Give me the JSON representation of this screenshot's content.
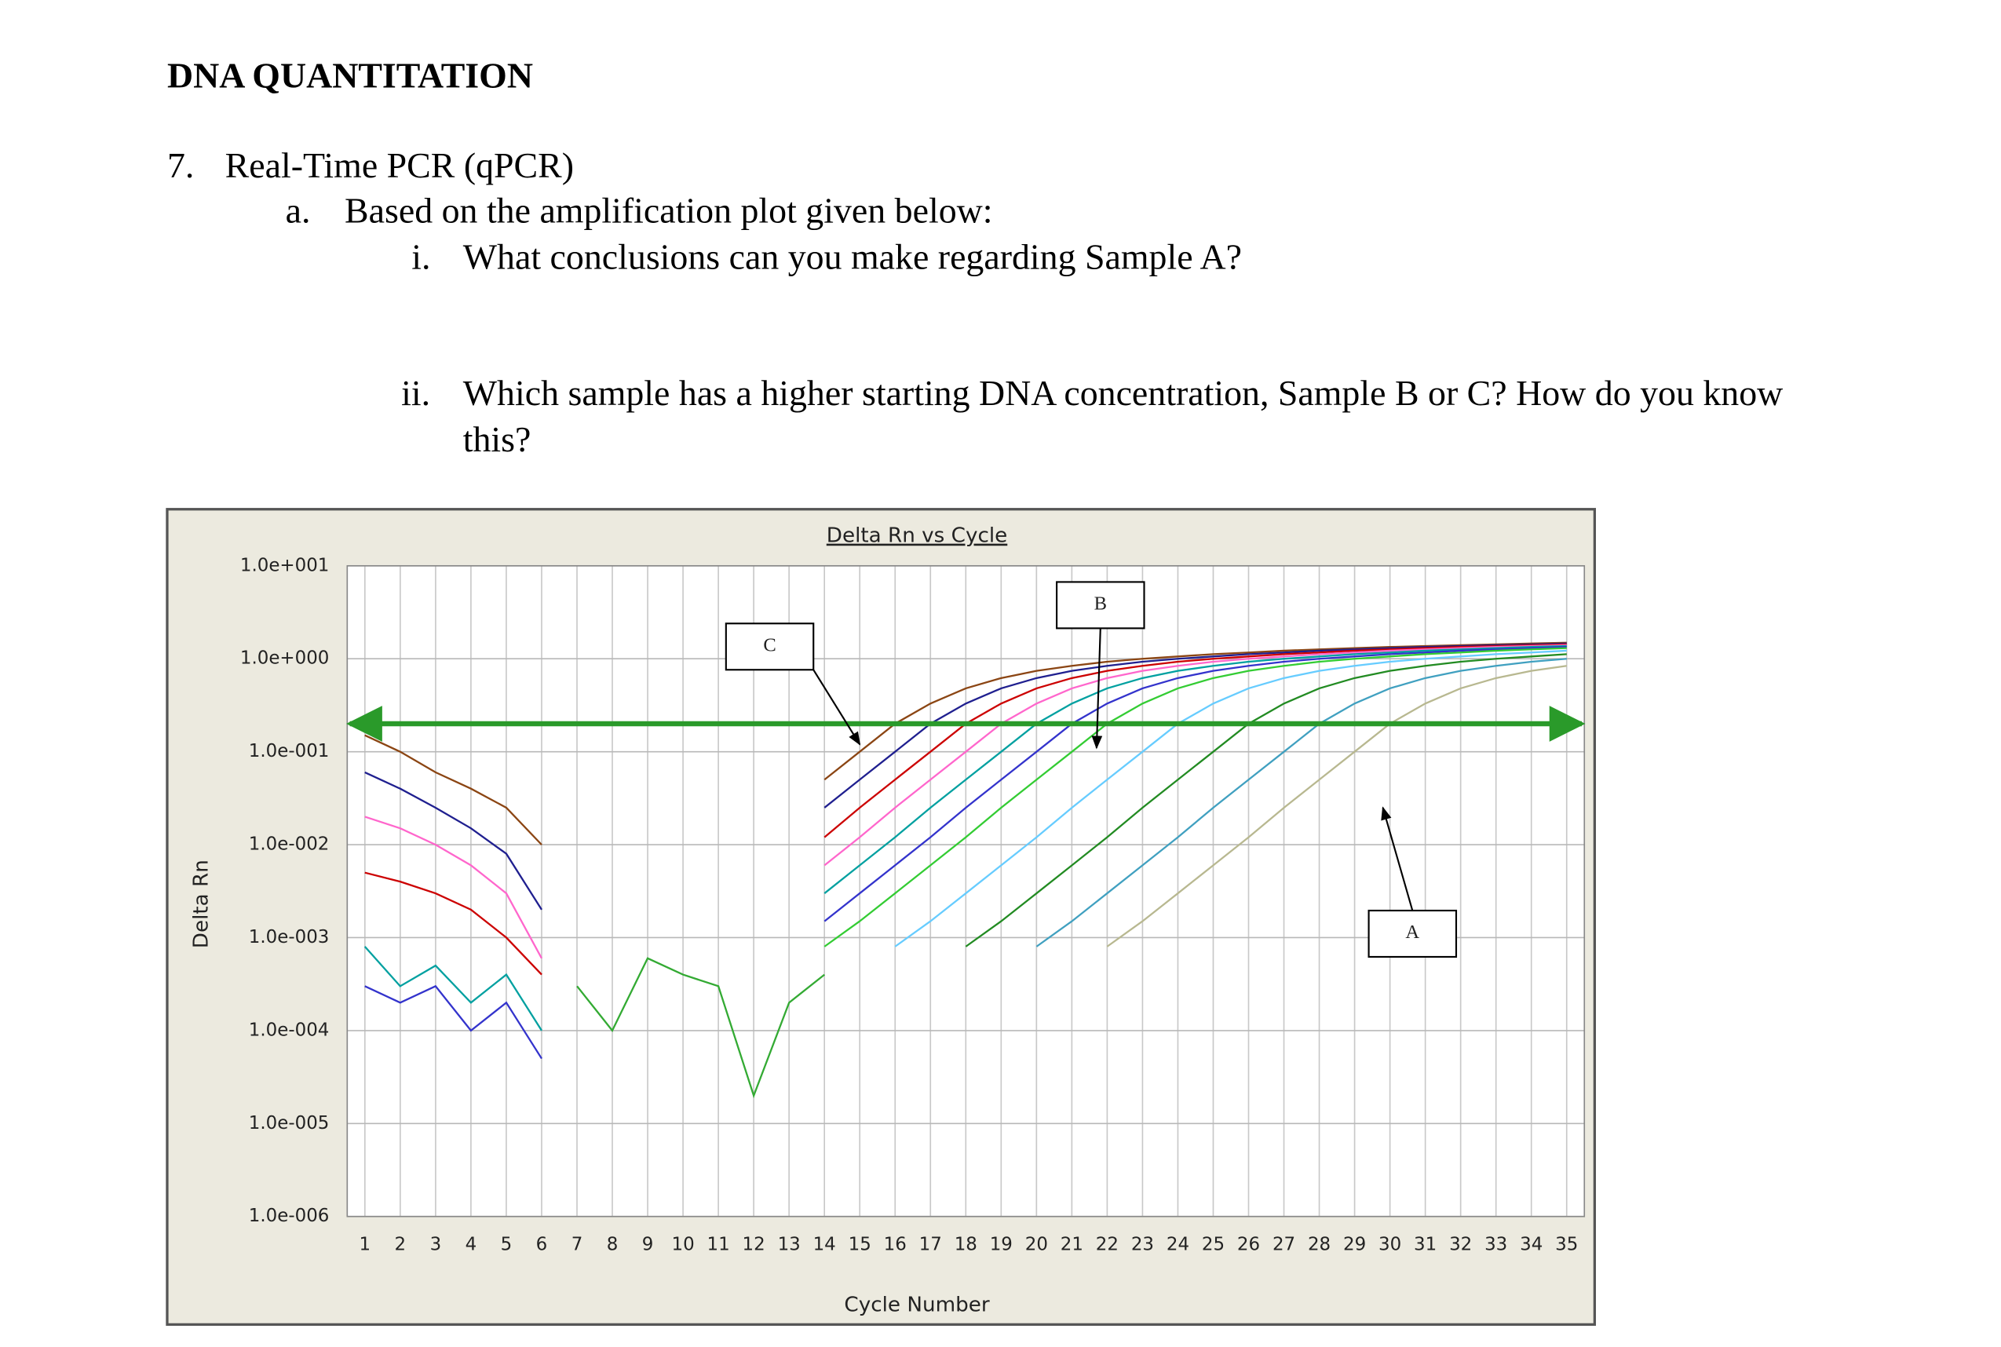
{
  "document": {
    "title": "DNA QUANTITATION",
    "question": {
      "number": "7.",
      "title": "Real-Time PCR (qPCR)",
      "part": {
        "label": "a.",
        "text": "Based on the amplification plot given below:",
        "items": [
          {
            "label": "i.",
            "text": "What conclusions can you make regarding Sample A?"
          },
          {
            "label": "ii.",
            "text": "Which sample has a higher starting DNA concentration, Sample B or C? How do you know this?"
          }
        ]
      }
    }
  },
  "chart_data": {
    "type": "line",
    "title": "Delta Rn vs Cycle",
    "x_label": "Cycle Number",
    "y_label": "Delta Rn",
    "log_y": true,
    "grid": true,
    "x": [
      1,
      2,
      3,
      4,
      5,
      6,
      7,
      8,
      9,
      10,
      11,
      12,
      13,
      14,
      15,
      16,
      17,
      18,
      19,
      20,
      21,
      22,
      23,
      24,
      25,
      26,
      27,
      28,
      29,
      30,
      31,
      32,
      33,
      34,
      35
    ],
    "xlim": [
      0.5,
      35.5
    ],
    "xticks": [
      1,
      2,
      3,
      4,
      5,
      6,
      7,
      8,
      9,
      10,
      11,
      12,
      13,
      14,
      15,
      16,
      17,
      18,
      19,
      20,
      21,
      22,
      23,
      24,
      25,
      26,
      27,
      28,
      29,
      30,
      31,
      32,
      33,
      34,
      35
    ],
    "ylim": [
      1e-06,
      10
    ],
    "yticks": [
      {
        "value": 10,
        "label": "1.0e+001"
      },
      {
        "value": 1,
        "label": "1.0e+000"
      },
      {
        "value": 0.1,
        "label": "1.0e-001"
      },
      {
        "value": 0.01,
        "label": "1.0e-002"
      },
      {
        "value": 0.001,
        "label": "1.0e-003"
      },
      {
        "value": 0.0001,
        "label": "1.0e-004"
      },
      {
        "value": 1e-05,
        "label": "1.0e-005"
      },
      {
        "value": 1e-06,
        "label": "1.0e-006"
      }
    ],
    "threshold": 0.2,
    "threshold_color": "#2a9a2a",
    "series": [
      {
        "color": "#8b4513",
        "values": [
          0.15,
          0.1,
          0.06,
          0.04,
          0.025,
          0.01,
          null,
          null,
          null,
          null,
          null,
          null,
          null,
          0.05,
          0.1,
          0.2,
          0.33,
          0.48,
          0.62,
          0.74,
          0.84,
          0.93,
          1.0,
          1.06,
          1.12,
          1.17,
          1.22,
          1.26,
          1.3,
          1.34,
          1.37,
          1.4,
          1.43,
          1.46,
          1.49
        ]
      },
      {
        "color": "#1f1f8f",
        "values": [
          0.06,
          0.04,
          0.025,
          0.015,
          0.008,
          0.002,
          null,
          null,
          null,
          null,
          null,
          null,
          null,
          0.025,
          0.05,
          0.1,
          0.2,
          0.33,
          0.48,
          0.62,
          0.74,
          0.84,
          0.93,
          1.0,
          1.06,
          1.12,
          1.17,
          1.22,
          1.26,
          1.3,
          1.34,
          1.37,
          1.4,
          1.43,
          1.46
        ]
      },
      {
        "color": "#cc0000",
        "values": [
          0.005,
          0.004,
          0.003,
          0.002,
          0.001,
          0.0004,
          null,
          null,
          null,
          null,
          null,
          null,
          null,
          0.012,
          0.025,
          0.05,
          0.1,
          0.2,
          0.33,
          0.48,
          0.62,
          0.74,
          0.84,
          0.93,
          1.0,
          1.06,
          1.12,
          1.17,
          1.22,
          1.26,
          1.3,
          1.34,
          1.37,
          1.4,
          1.43
        ]
      },
      {
        "color": "#ff66cc",
        "values": [
          0.02,
          0.015,
          0.01,
          0.006,
          0.003,
          0.0006,
          null,
          null,
          null,
          null,
          null,
          null,
          null,
          0.006,
          0.012,
          0.025,
          0.05,
          0.1,
          0.2,
          0.33,
          0.48,
          0.62,
          0.74,
          0.84,
          0.93,
          1.0,
          1.06,
          1.12,
          1.17,
          1.22,
          1.26,
          1.3,
          1.34,
          1.37,
          1.4
        ]
      },
      {
        "color": "#00a0a0",
        "values": [
          0.0008,
          0.0003,
          0.0005,
          0.0002,
          0.0004,
          0.0001,
          null,
          null,
          null,
          null,
          null,
          null,
          null,
          0.003,
          0.006,
          0.012,
          0.025,
          0.05,
          0.1,
          0.2,
          0.33,
          0.48,
          0.62,
          0.74,
          0.84,
          0.93,
          1.0,
          1.06,
          1.12,
          1.17,
          1.22,
          1.26,
          1.3,
          1.34,
          1.37
        ]
      },
      {
        "color": "#3333cc",
        "values": [
          0.0003,
          0.0002,
          0.0003,
          0.0001,
          0.0002,
          5e-05,
          null,
          null,
          null,
          null,
          null,
          null,
          null,
          0.0015,
          0.003,
          0.006,
          0.012,
          0.025,
          0.05,
          0.1,
          0.2,
          0.33,
          0.48,
          0.62,
          0.74,
          0.84,
          0.93,
          1.0,
          1.06,
          1.12,
          1.17,
          1.22,
          1.26,
          1.3,
          1.34
        ]
      },
      {
        "color": "#33cc33",
        "values": [
          null,
          null,
          null,
          null,
          null,
          null,
          null,
          null,
          null,
          null,
          null,
          null,
          null,
          0.0008,
          0.0015,
          0.003,
          0.006,
          0.012,
          0.025,
          0.05,
          0.1,
          0.2,
          0.33,
          0.48,
          0.62,
          0.74,
          0.84,
          0.93,
          1.0,
          1.06,
          1.12,
          1.17,
          1.22,
          1.26,
          1.3
        ]
      },
      {
        "color": "#66ccff",
        "values": [
          null,
          null,
          null,
          null,
          null,
          null,
          null,
          null,
          null,
          null,
          null,
          null,
          null,
          null,
          null,
          0.0008,
          0.0015,
          0.003,
          0.006,
          0.012,
          0.025,
          0.05,
          0.1,
          0.2,
          0.33,
          0.48,
          0.62,
          0.74,
          0.84,
          0.93,
          1.0,
          1.06,
          1.12,
          1.17,
          1.22
        ]
      },
      {
        "color": "#228b22",
        "values": [
          null,
          null,
          null,
          null,
          null,
          null,
          null,
          null,
          null,
          null,
          null,
          null,
          null,
          null,
          null,
          null,
          null,
          0.0008,
          0.0015,
          0.003,
          0.006,
          0.012,
          0.025,
          0.05,
          0.1,
          0.2,
          0.33,
          0.48,
          0.62,
          0.74,
          0.84,
          0.93,
          1.0,
          1.06,
          1.12
        ]
      },
      {
        "color": "#40a0c0",
        "values": [
          null,
          null,
          null,
          null,
          null,
          null,
          null,
          null,
          null,
          null,
          null,
          null,
          null,
          null,
          null,
          null,
          null,
          null,
          null,
          0.0008,
          0.0015,
          0.003,
          0.006,
          0.012,
          0.025,
          0.05,
          0.1,
          0.2,
          0.33,
          0.48,
          0.62,
          0.74,
          0.84,
          0.93,
          1.0
        ]
      },
      {
        "color": "#b8b890",
        "values": [
          null,
          null,
          null,
          null,
          null,
          null,
          null,
          null,
          null,
          null,
          null,
          null,
          null,
          null,
          null,
          null,
          null,
          null,
          null,
          null,
          null,
          0.0008,
          0.0015,
          0.003,
          0.006,
          0.012,
          0.025,
          0.05,
          0.1,
          0.2,
          0.33,
          0.48,
          0.62,
          0.74,
          0.84
        ]
      },
      {
        "color": "#33aa33",
        "values": [
          null,
          null,
          null,
          null,
          null,
          null,
          0.0003,
          0.0001,
          0.0006,
          0.0004,
          0.0003,
          2e-05,
          0.0002,
          0.0004,
          null,
          null,
          null,
          null,
          null,
          null,
          null,
          null,
          null,
          null,
          null,
          null,
          null,
          null,
          null,
          null,
          null,
          null,
          null,
          null,
          null
        ]
      }
    ],
    "annotations": [
      {
        "text": "C",
        "x": 15,
        "y": 0.12
      },
      {
        "text": "B",
        "x": 21.7,
        "y": 0.11
      },
      {
        "text": "A",
        "x": 29.8,
        "y": 0.025
      }
    ]
  }
}
